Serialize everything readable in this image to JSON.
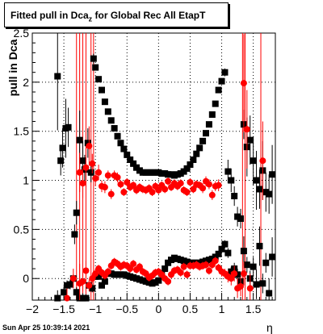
{
  "title": {
    "prefix": "Fitted pull in Dca",
    "subscript": "z",
    "suffix": " for Global Rec All EtapT"
  },
  "footer": {
    "datestamp": "Sun Apr 25 10:39:14 2021"
  },
  "chart_data": {
    "type": "scatter",
    "xlabel": "η",
    "ylabel": "pull in Dca",
    "xlim": [
      -2.0,
      1.85
    ],
    "ylim": [
      -0.22,
      2.5
    ],
    "x_ticks": [
      "−2",
      "−1.5",
      "−1",
      "−0.5",
      "0",
      "0.5",
      "1",
      "1.5"
    ],
    "y_ticks": [
      "0",
      "0.5",
      "1",
      "1.5",
      "2",
      "2.5"
    ],
    "grid": true,
    "series": [
      {
        "color": "#000000",
        "marker": "square",
        "points": [
          [
            -1.6,
            2.06,
            0.55
          ],
          [
            -1.55,
            1.2,
            0.15
          ],
          [
            -1.52,
            1.33,
            0.2
          ],
          [
            -1.47,
            1.53,
            0.3
          ],
          [
            -1.43,
            1.54,
            0.2
          ],
          [
            -1.33,
            0.45,
            0.1
          ],
          [
            -1.3,
            0.67,
            0.12
          ],
          [
            -1.25,
            1.41,
            0.3
          ],
          [
            -1.2,
            1.2,
            0.2
          ],
          [
            -1.17,
            1.11,
            0.15
          ],
          [
            -1.12,
            1.38,
            0.15
          ],
          [
            -1.07,
            1.08,
            0.1
          ],
          [
            -1.03,
            2.24,
            0.05
          ],
          [
            -1.0,
            2.15,
            0.03
          ],
          [
            -0.95,
            2.03,
            0.03
          ],
          [
            -0.9,
            1.92,
            0.03
          ],
          [
            -0.85,
            1.8,
            0.02
          ],
          [
            -0.8,
            1.7,
            0.02
          ],
          [
            -0.75,
            1.61,
            0.02
          ],
          [
            -0.7,
            1.53,
            0.02
          ],
          [
            -0.65,
            1.45,
            0.02
          ],
          [
            -0.6,
            1.38,
            0.02
          ],
          [
            -0.55,
            1.32,
            0.02
          ],
          [
            -0.5,
            1.26,
            0.02
          ],
          [
            -0.45,
            1.21,
            0.02
          ],
          [
            -0.4,
            1.17,
            0.02
          ],
          [
            -0.35,
            1.13,
            0.02
          ],
          [
            -0.3,
            1.1,
            0.02
          ],
          [
            -0.25,
            1.08,
            0.02
          ],
          [
            -0.2,
            1.08,
            0.02
          ],
          [
            -0.15,
            1.08,
            0.02
          ],
          [
            -0.1,
            1.08,
            0.02
          ],
          [
            -0.05,
            1.08,
            0.02
          ],
          [
            0.0,
            1.08,
            0.02
          ],
          [
            0.05,
            1.07,
            0.02
          ],
          [
            0.1,
            1.07,
            0.02
          ],
          [
            0.15,
            1.06,
            0.02
          ],
          [
            0.2,
            1.06,
            0.02
          ],
          [
            0.25,
            1.05,
            0.02
          ],
          [
            0.3,
            1.06,
            0.02
          ],
          [
            0.35,
            1.07,
            0.02
          ],
          [
            0.4,
            1.09,
            0.02
          ],
          [
            0.45,
            1.12,
            0.02
          ],
          [
            0.5,
            1.16,
            0.02
          ],
          [
            0.55,
            1.21,
            0.02
          ],
          [
            0.6,
            1.27,
            0.02
          ],
          [
            0.65,
            1.33,
            0.02
          ],
          [
            0.7,
            1.4,
            0.02
          ],
          [
            0.75,
            1.48,
            0.02
          ],
          [
            0.8,
            1.57,
            0.02
          ],
          [
            0.85,
            1.67,
            0.02
          ],
          [
            0.9,
            1.78,
            0.02
          ],
          [
            0.95,
            1.92,
            0.03
          ],
          [
            1.0,
            2.01,
            0.03
          ],
          [
            1.05,
            2.1,
            0.04
          ],
          [
            1.1,
            1.09,
            0.12
          ],
          [
            1.15,
            1.0,
            0.12
          ],
          [
            1.2,
            0.84,
            0.1
          ],
          [
            1.25,
            0.63,
            0.1
          ],
          [
            1.3,
            0.61,
            0.1
          ],
          [
            1.35,
            1.57,
            0.15
          ],
          [
            1.4,
            1.34,
            0.3
          ],
          [
            1.45,
            1.41,
            0.25
          ],
          [
            1.5,
            1.2,
            0.25
          ],
          [
            1.55,
            1.0,
            0.3
          ],
          [
            1.6,
            0.91,
            0.2
          ],
          [
            1.65,
            1.1,
            0.3
          ],
          [
            1.7,
            0.88,
            0.2
          ],
          [
            1.75,
            0.86,
            0.2
          ],
          [
            1.8,
            1.06,
            0.3
          ],
          [
            -1.6,
            -0.2,
            0.08
          ],
          [
            -1.5,
            -0.14,
            0.06
          ],
          [
            -1.45,
            -0.07,
            0.05
          ],
          [
            -1.4,
            -0.06,
            0.05
          ],
          [
            -1.35,
            0.0,
            0.04
          ],
          [
            -1.3,
            -0.14,
            0.05
          ],
          [
            -1.25,
            -0.2,
            0.05
          ],
          [
            -1.2,
            -0.2,
            0.05
          ],
          [
            -1.15,
            -0.2,
            0.04
          ],
          [
            -1.1,
            -0.07,
            0.04
          ],
          [
            -1.05,
            -0.1,
            0.04
          ],
          [
            -1.0,
            0.02,
            0.03
          ],
          [
            -0.95,
            0.02,
            0.03
          ],
          [
            -0.9,
            -0.07,
            0.03
          ],
          [
            -0.85,
            -0.03,
            0.03
          ],
          [
            -0.8,
            0.05,
            0.02
          ],
          [
            -0.75,
            0.05,
            0.02
          ],
          [
            -0.7,
            0.04,
            0.02
          ],
          [
            -0.65,
            0.04,
            0.02
          ],
          [
            -0.6,
            0.04,
            0.02
          ],
          [
            -0.55,
            0.04,
            0.02
          ],
          [
            -0.5,
            0.03,
            0.02
          ],
          [
            -0.45,
            0.02,
            0.02
          ],
          [
            -0.4,
            0.01,
            0.02
          ],
          [
            -0.35,
            0.0,
            0.02
          ],
          [
            -0.3,
            -0.01,
            0.02
          ],
          [
            -0.25,
            -0.02,
            0.02
          ],
          [
            -0.2,
            -0.03,
            0.02
          ],
          [
            -0.15,
            -0.04,
            0.02
          ],
          [
            -0.1,
            -0.05,
            0.02
          ],
          [
            -0.05,
            -0.04,
            0.02
          ],
          [
            0.0,
            -0.02,
            0.02
          ],
          [
            0.05,
            0.05,
            0.02
          ],
          [
            0.1,
            0.1,
            0.02
          ],
          [
            0.15,
            0.16,
            0.02
          ],
          [
            0.2,
            0.19,
            0.02
          ],
          [
            0.25,
            0.21,
            0.02
          ],
          [
            0.3,
            0.2,
            0.02
          ],
          [
            0.35,
            0.19,
            0.02
          ],
          [
            0.4,
            0.18,
            0.02
          ],
          [
            0.45,
            0.17,
            0.02
          ],
          [
            0.5,
            0.16,
            0.02
          ],
          [
            0.55,
            0.16,
            0.02
          ],
          [
            0.6,
            0.16,
            0.02
          ],
          [
            0.65,
            0.16,
            0.02
          ],
          [
            0.7,
            0.17,
            0.02
          ],
          [
            0.75,
            0.18,
            0.02
          ],
          [
            0.8,
            0.19,
            0.02
          ],
          [
            0.85,
            0.2,
            0.02
          ],
          [
            0.9,
            0.22,
            0.03
          ],
          [
            0.95,
            0.25,
            0.03
          ],
          [
            1.0,
            0.3,
            0.03
          ],
          [
            1.05,
            0.35,
            0.04
          ],
          [
            1.1,
            0.26,
            0.05
          ],
          [
            1.15,
            0.07,
            0.05
          ],
          [
            1.2,
            0.1,
            0.06
          ],
          [
            1.25,
            0.04,
            0.06
          ],
          [
            1.3,
            -0.03,
            0.06
          ],
          [
            1.35,
            0.28,
            0.15
          ],
          [
            1.4,
            0.14,
            0.08
          ],
          [
            1.45,
            0.0,
            0.08
          ],
          [
            1.5,
            0.12,
            0.1
          ],
          [
            1.55,
            -0.06,
            0.15
          ],
          [
            1.6,
            0.33,
            0.2
          ],
          [
            1.65,
            -0.05,
            0.1
          ],
          [
            1.7,
            0.16,
            0.1
          ],
          [
            1.75,
            -0.15,
            0.15
          ],
          [
            1.8,
            0.22,
            0.2
          ]
        ]
      },
      {
        "color": "#ff0000",
        "marker": "circle",
        "points": [
          [
            -1.45,
            -0.2,
            0.1
          ],
          [
            -1.35,
            0.0,
            0.1
          ],
          [
            -1.25,
            -0.05,
            0.2
          ],
          [
            -1.2,
            -0.03,
            0.1
          ],
          [
            -1.15,
            0.08,
            0.1
          ],
          [
            -1.1,
            -0.07,
            0.06
          ],
          [
            -1.05,
            0.0,
            0.05
          ],
          [
            -1.0,
            0.05,
            0.05
          ],
          [
            -0.95,
            0.1,
            0.04
          ],
          [
            -0.9,
            0.06,
            0.04
          ],
          [
            -0.85,
            0.03,
            0.04
          ],
          [
            -0.8,
            0.07,
            0.04
          ],
          [
            -0.75,
            0.13,
            0.04
          ],
          [
            -0.7,
            0.17,
            0.04
          ],
          [
            -0.65,
            0.15,
            0.04
          ],
          [
            -0.6,
            0.12,
            0.04
          ],
          [
            -0.55,
            0.14,
            0.04
          ],
          [
            -0.5,
            0.13,
            0.04
          ],
          [
            -0.45,
            0.1,
            0.04
          ],
          [
            -0.4,
            0.15,
            0.04
          ],
          [
            -0.35,
            0.09,
            0.04
          ],
          [
            -0.3,
            0.12,
            0.04
          ],
          [
            -0.25,
            0.07,
            0.04
          ],
          [
            -0.2,
            0.05,
            0.04
          ],
          [
            -0.15,
            0.01,
            0.04
          ],
          [
            -0.1,
            0.03,
            0.04
          ],
          [
            -0.05,
            0.06,
            0.04
          ],
          [
            0.0,
            0.07,
            0.04
          ],
          [
            0.05,
            0.04,
            0.04
          ],
          [
            0.1,
            0.0,
            0.04
          ],
          [
            0.15,
            -0.03,
            0.04
          ],
          [
            0.2,
            0.04,
            0.04
          ],
          [
            0.25,
            0.08,
            0.04
          ],
          [
            0.3,
            0.09,
            0.04
          ],
          [
            0.35,
            0.06,
            0.04
          ],
          [
            0.4,
            0.12,
            0.04
          ],
          [
            0.45,
            0.04,
            0.04
          ],
          [
            0.5,
            0.13,
            0.04
          ],
          [
            0.55,
            0.13,
            0.04
          ],
          [
            0.6,
            0.14,
            0.04
          ],
          [
            0.65,
            0.12,
            0.04
          ],
          [
            0.7,
            0.13,
            0.04
          ],
          [
            0.75,
            0.14,
            0.04
          ],
          [
            0.8,
            0.08,
            0.04
          ],
          [
            0.85,
            0.14,
            0.04
          ],
          [
            0.9,
            0.18,
            0.04
          ],
          [
            0.95,
            0.11,
            0.04
          ],
          [
            1.0,
            0.07,
            0.05
          ],
          [
            1.05,
            0.05,
            0.05
          ],
          [
            1.1,
            0.02,
            0.06
          ],
          [
            1.15,
            0.0,
            0.07
          ],
          [
            1.2,
            0.05,
            0.08
          ],
          [
            1.25,
            -0.1,
            0.1
          ],
          [
            1.3,
            -0.08,
            0.1
          ],
          [
            1.35,
            0.05,
            0.12
          ],
          [
            1.45,
            -0.1,
            0.15
          ],
          [
            -1.25,
            1.08,
            0.2
          ],
          [
            -1.2,
            0.97,
            0.15
          ],
          [
            -1.15,
            1.13,
            0.2
          ],
          [
            -1.1,
            1.35,
            0.2
          ],
          [
            -1.05,
            1.17,
            0.1
          ],
          [
            -1.0,
            1.02,
            0.08
          ],
          [
            -0.95,
            1.08,
            0.08
          ],
          [
            -0.9,
            0.94,
            0.06
          ],
          [
            -0.85,
            0.93,
            0.06
          ],
          [
            -0.8,
            1.05,
            0.05
          ],
          [
            -0.75,
            0.86,
            0.05
          ],
          [
            -0.7,
            1.05,
            0.05
          ],
          [
            -0.65,
            1.03,
            0.05
          ],
          [
            -0.6,
            0.96,
            0.04
          ],
          [
            -0.55,
            0.88,
            0.04
          ],
          [
            -0.5,
            0.98,
            0.04
          ],
          [
            -0.45,
            0.93,
            0.04
          ],
          [
            -0.4,
            0.95,
            0.04
          ],
          [
            -0.35,
            0.9,
            0.04
          ],
          [
            -0.3,
            0.93,
            0.04
          ],
          [
            -0.25,
            0.91,
            0.04
          ],
          [
            -0.2,
            0.9,
            0.04
          ],
          [
            -0.15,
            0.92,
            0.04
          ],
          [
            -0.1,
            0.88,
            0.04
          ],
          [
            -0.05,
            0.94,
            0.04
          ],
          [
            0.0,
            0.9,
            0.04
          ],
          [
            0.05,
            0.95,
            0.04
          ],
          [
            0.1,
            0.91,
            0.04
          ],
          [
            0.15,
            0.99,
            0.04
          ],
          [
            0.2,
            0.93,
            0.04
          ],
          [
            0.25,
            0.97,
            0.04
          ],
          [
            0.3,
            0.94,
            0.04
          ],
          [
            0.35,
            0.97,
            0.04
          ],
          [
            0.4,
            0.9,
            0.04
          ],
          [
            0.45,
            0.88,
            0.04
          ],
          [
            0.5,
            0.98,
            0.04
          ],
          [
            0.55,
            0.91,
            0.04
          ],
          [
            0.6,
            0.96,
            0.04
          ],
          [
            0.65,
            0.95,
            0.04
          ],
          [
            0.7,
            0.92,
            0.05
          ],
          [
            0.75,
            0.99,
            0.05
          ],
          [
            0.8,
            0.96,
            0.05
          ],
          [
            0.85,
            0.85,
            0.05
          ],
          [
            0.9,
            0.94,
            0.05
          ],
          [
            0.95,
            0.95,
            0.06
          ],
          [
            1.35,
            1.99,
            0.5
          ],
          [
            1.4,
            1.52,
            0.4
          ],
          [
            1.65,
            1.2,
            0.4
          ]
        ]
      }
    ],
    "vertical_lines": [
      -1.3,
      -1.25,
      -1.2,
      -1.15,
      -1.07,
      -1.03,
      1.33,
      1.37,
      1.62
    ]
  }
}
